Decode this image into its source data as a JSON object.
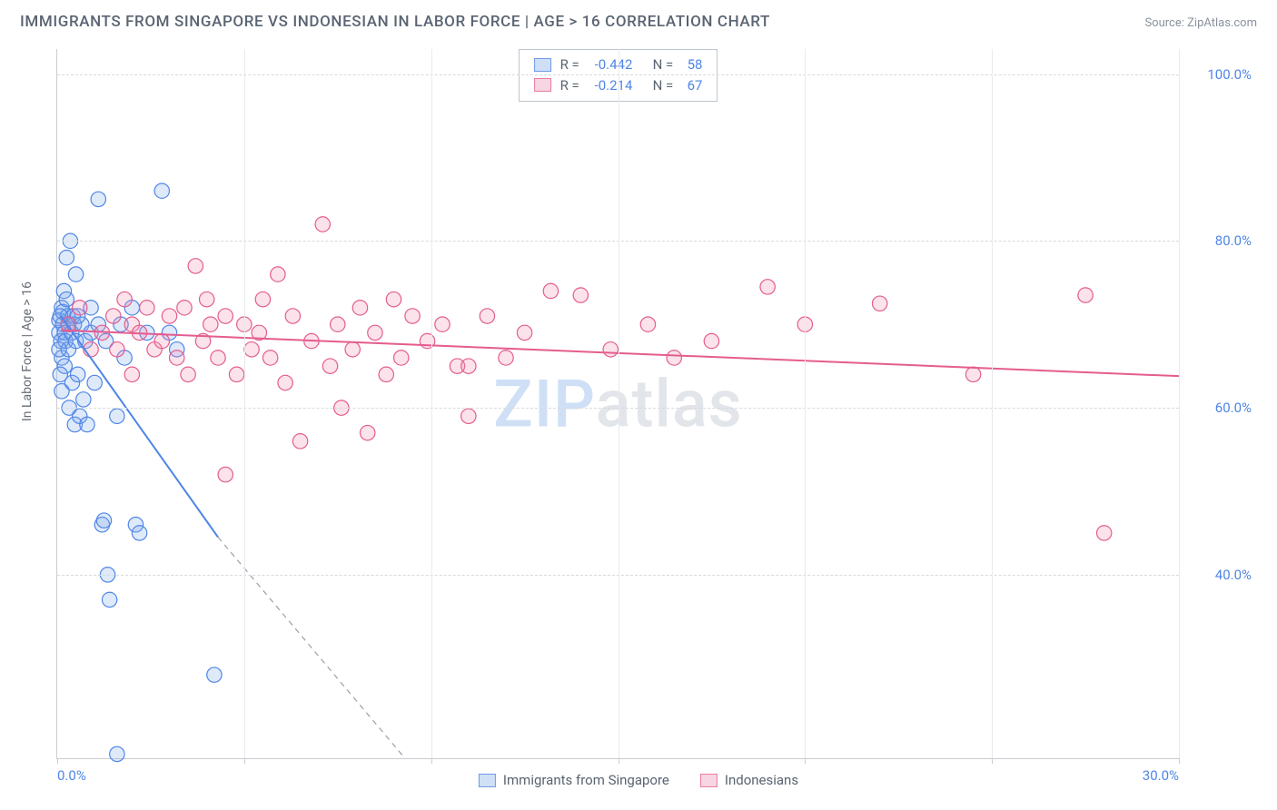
{
  "title": "IMMIGRANTS FROM SINGAPORE VS INDONESIAN IN LABOR FORCE | AGE > 16 CORRELATION CHART",
  "source": "Source: ZipAtlas.com",
  "watermark": {
    "z": "ZIP",
    "rest": "atlas"
  },
  "chart": {
    "type": "scatter",
    "background_color": "#ffffff",
    "grid_color": "#d7dade",
    "axis_color": "#c9ccd2",
    "ylabel": "In Labor Force | Age > 16",
    "label_fontsize": 14,
    "label_color": "#666b74",
    "tick_fontsize": 15,
    "tick_color": "#4f86e6",
    "xlim": [
      0,
      30
    ],
    "ylim": [
      18,
      103
    ],
    "yticks": [
      {
        "v": 40,
        "label": "40.0%"
      },
      {
        "v": 60,
        "label": "60.0%"
      },
      {
        "v": 80,
        "label": "80.0%"
      },
      {
        "v": 100,
        "label": "100.0%"
      }
    ],
    "xticks": [
      {
        "v": 0,
        "label": "0.0%"
      },
      {
        "v": 5,
        "label": ""
      },
      {
        "v": 10,
        "label": ""
      },
      {
        "v": 15,
        "label": ""
      },
      {
        "v": 20,
        "label": ""
      },
      {
        "v": 25,
        "label": ""
      },
      {
        "v": 30,
        "label": "30.0%"
      }
    ],
    "marker_radius": 8.2,
    "marker_fill_opacity": 0.26,
    "line_width": 2,
    "series": [
      {
        "name": "Immigrants from Singapore",
        "key": "singapore",
        "color_stroke": "#4f86e6",
        "color_fill": "#7fa9ed",
        "swatch_fill": "#cfe0f6",
        "swatch_border": "#6f9be8",
        "R": "-0.442",
        "N": "58",
        "trend": {
          "x1": 0.1,
          "y1": 71,
          "x2": 4.3,
          "y2": 44.5,
          "dash_to_x": 9.3,
          "dash_to_y": 18
        },
        "points": [
          [
            0.05,
            69
          ],
          [
            0.05,
            70.5
          ],
          [
            0.1,
            68
          ],
          [
            0.12,
            72
          ],
          [
            0.12,
            66
          ],
          [
            0.15,
            70
          ],
          [
            0.15,
            71.5
          ],
          [
            0.18,
            74
          ],
          [
            0.2,
            69
          ],
          [
            0.2,
            65
          ],
          [
            0.22,
            68
          ],
          [
            0.25,
            73
          ],
          [
            0.25,
            78
          ],
          [
            0.28,
            71
          ],
          [
            0.3,
            67
          ],
          [
            0.3,
            70
          ],
          [
            0.32,
            60
          ],
          [
            0.35,
            80
          ],
          [
            0.38,
            69
          ],
          [
            0.4,
            63
          ],
          [
            0.42,
            71
          ],
          [
            0.45,
            70
          ],
          [
            0.47,
            58
          ],
          [
            0.5,
            68
          ],
          [
            0.55,
            64
          ],
          [
            0.6,
            59
          ],
          [
            0.65,
            70
          ],
          [
            0.7,
            61
          ],
          [
            0.75,
            68
          ],
          [
            0.8,
            58
          ],
          [
            0.9,
            69
          ],
          [
            1.0,
            63
          ],
          [
            1.1,
            85
          ],
          [
            1.1,
            70
          ],
          [
            1.2,
            46
          ],
          [
            1.25,
            46.5
          ],
          [
            1.3,
            68
          ],
          [
            1.35,
            40
          ],
          [
            1.4,
            37
          ],
          [
            1.6,
            59
          ],
          [
            1.7,
            70
          ],
          [
            1.8,
            66
          ],
          [
            2.0,
            72
          ],
          [
            2.1,
            46
          ],
          [
            2.2,
            45
          ],
          [
            2.4,
            69
          ],
          [
            2.8,
            86
          ],
          [
            3.0,
            69
          ],
          [
            3.2,
            67
          ],
          [
            4.2,
            28
          ],
          [
            1.6,
            18.5
          ],
          [
            0.5,
            76
          ],
          [
            0.12,
            62
          ],
          [
            0.08,
            64
          ],
          [
            0.08,
            71
          ],
          [
            0.05,
            67
          ],
          [
            0.55,
            71
          ],
          [
            0.9,
            72
          ]
        ]
      },
      {
        "name": "Indonesians",
        "key": "indonesians",
        "color_stroke": "#e45d8e",
        "color_fill": "#ef8fb1",
        "swatch_fill": "#f7d5e2",
        "swatch_border": "#eb7ca4",
        "R": "-0.214",
        "N": "67",
        "trend": {
          "x1": 0.1,
          "y1": 69.3,
          "x2": 30,
          "y2": 63.8
        },
        "points": [
          [
            0.3,
            70
          ],
          [
            0.6,
            72
          ],
          [
            0.9,
            67
          ],
          [
            1.2,
            69
          ],
          [
            1.5,
            71
          ],
          [
            1.6,
            67
          ],
          [
            1.8,
            73
          ],
          [
            2.0,
            64
          ],
          [
            2.0,
            70
          ],
          [
            2.2,
            69
          ],
          [
            2.4,
            72
          ],
          [
            2.6,
            67
          ],
          [
            2.8,
            68
          ],
          [
            3.0,
            71
          ],
          [
            3.2,
            66
          ],
          [
            3.4,
            72
          ],
          [
            3.5,
            64
          ],
          [
            3.7,
            77
          ],
          [
            3.9,
            68
          ],
          [
            4.1,
            70
          ],
          [
            4.3,
            66
          ],
          [
            4.5,
            71
          ],
          [
            4.5,
            52
          ],
          [
            4.8,
            64
          ],
          [
            5.0,
            70
          ],
          [
            5.2,
            67
          ],
          [
            5.5,
            73
          ],
          [
            5.7,
            66
          ],
          [
            5.9,
            76
          ],
          [
            6.1,
            63
          ],
          [
            6.3,
            71
          ],
          [
            6.5,
            56
          ],
          [
            6.8,
            68
          ],
          [
            7.1,
            82
          ],
          [
            7.3,
            65
          ],
          [
            7.5,
            70
          ],
          [
            7.6,
            60
          ],
          [
            7.9,
            67
          ],
          [
            8.1,
            72
          ],
          [
            8.3,
            57
          ],
          [
            8.5,
            69
          ],
          [
            8.8,
            64
          ],
          [
            9.0,
            73
          ],
          [
            9.2,
            66
          ],
          [
            9.5,
            71
          ],
          [
            9.9,
            68
          ],
          [
            10.3,
            70
          ],
          [
            10.7,
            65
          ],
          [
            11.0,
            65
          ],
          [
            11.0,
            59
          ],
          [
            11.5,
            71
          ],
          [
            12.0,
            66
          ],
          [
            12.5,
            69
          ],
          [
            13.2,
            74
          ],
          [
            14.0,
            73.5
          ],
          [
            14.8,
            67
          ],
          [
            15.8,
            70
          ],
          [
            16.5,
            66
          ],
          [
            17.5,
            68
          ],
          [
            19.0,
            74.5
          ],
          [
            20.0,
            70
          ],
          [
            22.0,
            72.5
          ],
          [
            24.5,
            64
          ],
          [
            27.5,
            73.5
          ],
          [
            28.0,
            45
          ],
          [
            5.4,
            69
          ],
          [
            4.0,
            73
          ]
        ]
      }
    ]
  },
  "bottom_legend": [
    {
      "key": "singapore",
      "label": "Immigrants from Singapore"
    },
    {
      "key": "indonesians",
      "label": "Indonesians"
    }
  ]
}
